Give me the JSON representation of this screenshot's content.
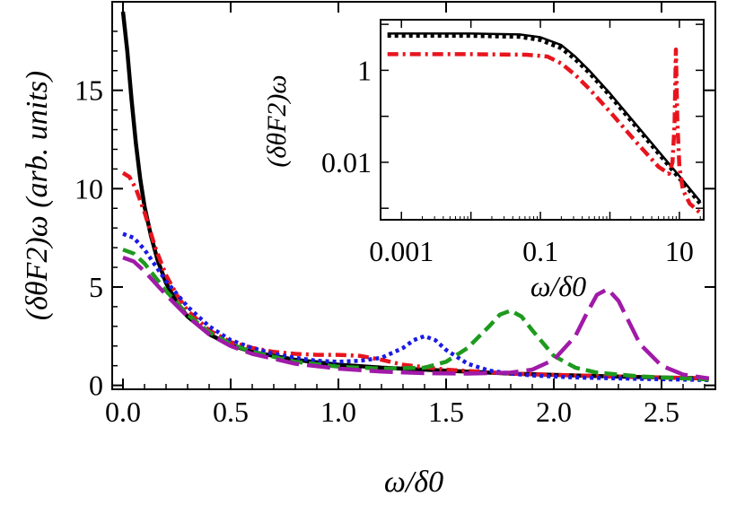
{
  "chart_data": [
    {
      "id": "main",
      "type": "line",
      "title": "",
      "xlabel": "ω/δ0",
      "ylabel": "(δθF2)ω (arb. units)",
      "xlim": [
        -0.05,
        2.75
      ],
      "ylim": [
        -0.2,
        19.5
      ],
      "x_ticks": [
        0.0,
        0.5,
        1.0,
        1.5,
        2.0,
        2.5
      ],
      "x_tick_labels": [
        "0.0",
        "0.5",
        "1.0",
        "1.5",
        "2.0",
        "2.5"
      ],
      "y_ticks": [
        0,
        5,
        10,
        15
      ],
      "y_tick_labels": [
        "0",
        "5",
        "10",
        "15"
      ],
      "series": [
        {
          "name": "black-solid",
          "color": "#000000",
          "dash": "solid",
          "x": [
            0.0,
            0.02,
            0.04,
            0.06,
            0.08,
            0.1,
            0.13,
            0.16,
            0.2,
            0.25,
            0.3,
            0.4,
            0.5,
            0.6,
            0.8,
            1.0,
            1.2,
            1.5,
            1.8,
            2.1,
            2.4,
            2.72
          ],
          "y": [
            19.0,
            17.0,
            14.5,
            12.3,
            10.5,
            9.1,
            7.6,
            6.4,
            5.2,
            4.2,
            3.5,
            2.6,
            2.05,
            1.7,
            1.3,
            1.05,
            0.9,
            0.75,
            0.6,
            0.5,
            0.42,
            0.35
          ]
        },
        {
          "name": "red-dashdot",
          "color": "#e8141d",
          "dash": "dashdot",
          "x": [
            0.0,
            0.03,
            0.06,
            0.1,
            0.15,
            0.2,
            0.25,
            0.3,
            0.4,
            0.5,
            0.6,
            0.7,
            0.8,
            0.9,
            1.0,
            1.1,
            1.2,
            1.3,
            1.5,
            1.8,
            2.1,
            2.4,
            2.72
          ],
          "y": [
            10.8,
            10.6,
            10.0,
            8.8,
            7.0,
            5.6,
            4.6,
            3.8,
            2.8,
            2.2,
            1.9,
            1.7,
            1.6,
            1.55,
            1.55,
            1.5,
            1.3,
            1.05,
            0.8,
            0.6,
            0.5,
            0.42,
            0.35
          ]
        },
        {
          "name": "blue-dotted",
          "color": "#1a1ae6",
          "dash": "dotted",
          "x": [
            0.0,
            0.05,
            0.1,
            0.2,
            0.3,
            0.4,
            0.5,
            0.6,
            0.7,
            0.8,
            0.9,
            1.0,
            1.1,
            1.2,
            1.3,
            1.35,
            1.4,
            1.45,
            1.5,
            1.6,
            1.7,
            1.8,
            1.9,
            2.1,
            2.4,
            2.72
          ],
          "y": [
            7.7,
            7.5,
            6.9,
            5.3,
            4.0,
            3.0,
            2.3,
            1.9,
            1.6,
            1.4,
            1.25,
            1.2,
            1.25,
            1.4,
            1.9,
            2.3,
            2.5,
            2.3,
            1.8,
            1.1,
            0.75,
            0.6,
            0.5,
            0.4,
            0.33,
            0.27
          ]
        },
        {
          "name": "green-dashed",
          "color": "#1e9a1e",
          "dash": "dashed",
          "x": [
            0.0,
            0.05,
            0.1,
            0.2,
            0.3,
            0.4,
            0.5,
            0.6,
            0.8,
            1.0,
            1.2,
            1.4,
            1.5,
            1.6,
            1.7,
            1.75,
            1.8,
            1.85,
            1.9,
            2.0,
            2.1,
            2.2,
            2.4,
            2.72
          ],
          "y": [
            6.9,
            6.7,
            6.2,
            4.8,
            3.6,
            2.7,
            2.1,
            1.7,
            1.2,
            0.95,
            0.85,
            0.9,
            1.2,
            1.9,
            3.0,
            3.6,
            3.8,
            3.5,
            2.8,
            1.5,
            0.9,
            0.65,
            0.45,
            0.3
          ]
        },
        {
          "name": "purple-longdash",
          "color": "#a01aa8",
          "dash": "longdash",
          "x": [
            0.0,
            0.05,
            0.1,
            0.2,
            0.3,
            0.4,
            0.5,
            0.6,
            0.8,
            1.0,
            1.2,
            1.4,
            1.6,
            1.8,
            1.9,
            2.0,
            2.1,
            2.15,
            2.2,
            2.25,
            2.3,
            2.35,
            2.4,
            2.5,
            2.6,
            2.72
          ],
          "y": [
            6.5,
            6.3,
            5.8,
            4.6,
            3.5,
            2.6,
            2.0,
            1.6,
            1.1,
            0.85,
            0.7,
            0.62,
            0.6,
            0.65,
            0.8,
            1.3,
            2.5,
            3.6,
            4.6,
            4.9,
            4.3,
            3.2,
            2.1,
            1.0,
            0.55,
            0.35
          ]
        }
      ]
    },
    {
      "id": "inset",
      "type": "line",
      "scale": "log-log",
      "xlabel": "ω/δ0",
      "ylabel": "(δθF2)ω",
      "xlim_log10": [
        -3.3,
        1.35
      ],
      "ylim_log10": [
        -3.25,
        1.1
      ],
      "x_ticks_log10": [
        -3,
        -1,
        1
      ],
      "x_tick_labels": [
        "0.001",
        "0.1",
        "10"
      ],
      "y_ticks_log10": [
        0,
        -2
      ],
      "y_tick_labels": [
        "1",
        "0.01"
      ],
      "series": [
        {
          "name": "black-solid",
          "color": "#000000",
          "dash": "solid",
          "x_log10": [
            -3.2,
            -2.0,
            -1.3,
            -1.0,
            -0.7,
            -0.5,
            -0.3,
            0.0,
            0.5,
            1.0,
            1.3
          ],
          "y_log10": [
            0.8,
            0.8,
            0.78,
            0.72,
            0.55,
            0.3,
            0.0,
            -0.5,
            -1.4,
            -2.3,
            -2.85
          ]
        },
        {
          "name": "black-dotted",
          "color": "#000000",
          "dash": "dotted",
          "x_log10": [
            -3.2,
            -2.0,
            -1.3,
            -1.0,
            -0.7,
            -0.5,
            -0.3,
            0.0,
            0.5,
            1.0,
            1.3
          ],
          "y_log10": [
            0.75,
            0.75,
            0.73,
            0.66,
            0.48,
            0.24,
            -0.05,
            -0.55,
            -1.45,
            -2.35,
            -2.9
          ]
        },
        {
          "name": "red-dashdot",
          "color": "#e8141d",
          "dash": "dashdot",
          "x_log10": [
            -3.2,
            -2.0,
            -1.2,
            -0.9,
            -0.7,
            -0.5,
            -0.3,
            0.0,
            0.4,
            0.7,
            0.85,
            0.9,
            0.93,
            0.95,
            0.97,
            1.0,
            1.05,
            1.15,
            1.3
          ],
          "y_log10": [
            0.35,
            0.35,
            0.34,
            0.3,
            0.15,
            -0.1,
            -0.4,
            -0.9,
            -1.6,
            -2.1,
            -2.25,
            -2.0,
            -1.2,
            0.45,
            -1.1,
            -2.1,
            -2.6,
            -2.9,
            -3.1
          ]
        }
      ]
    }
  ]
}
